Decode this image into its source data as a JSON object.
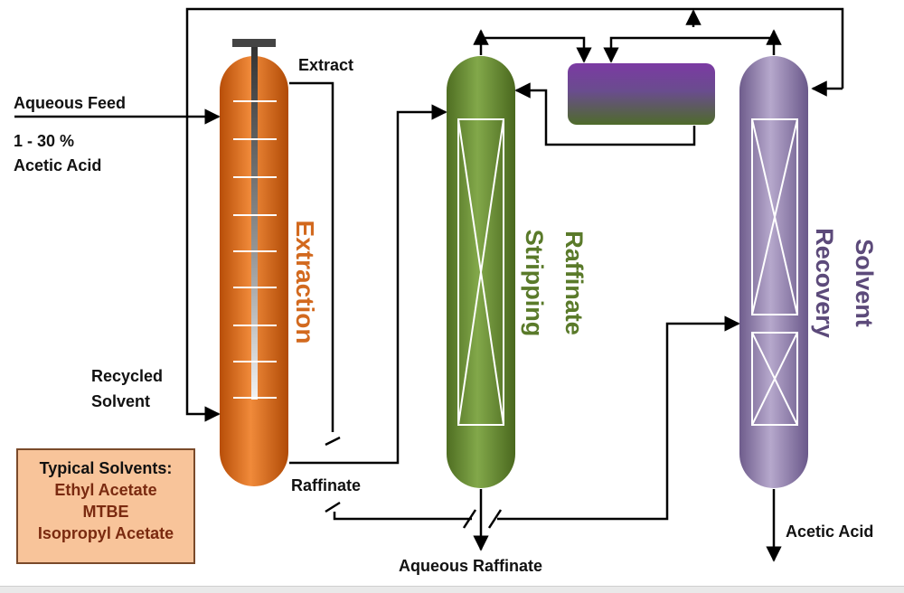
{
  "labels": {
    "aqueous_feed": "Aqueous Feed",
    "feed_conc_line1": "1 - 30 %",
    "feed_conc_line2": "Acetic Acid",
    "recycled_line1": "Recycled",
    "recycled_line2": "Solvent",
    "extract": "Extract",
    "raffinate": "Raffinate",
    "aqueous_raffinate": "Aqueous Raffinate",
    "acetic_acid": "Acetic Acid"
  },
  "columns": {
    "extraction": "Extraction",
    "raffinate_stripping_line1": "Raffinate",
    "raffinate_stripping_line2": "Stripping",
    "solvent_recovery_line1": "Solvent",
    "solvent_recovery_line2": "Recovery"
  },
  "solvents_box": {
    "title": "Typical Solvents:",
    "items": [
      "Ethyl Acetate",
      "MTBE",
      "Isopropyl Acetate"
    ]
  },
  "colors": {
    "extraction": "#e8731c",
    "stripping": "#6b8f32",
    "recovery": "#9d8ab8",
    "decanter_top": "#7b3aa3",
    "decanter_bottom": "#4e6b2a",
    "extraction_text": "#d2691e",
    "stripping_text": "#5a7a2a",
    "recovery_text": "#5c4a7a",
    "solvent_items": "#7a2a10"
  }
}
